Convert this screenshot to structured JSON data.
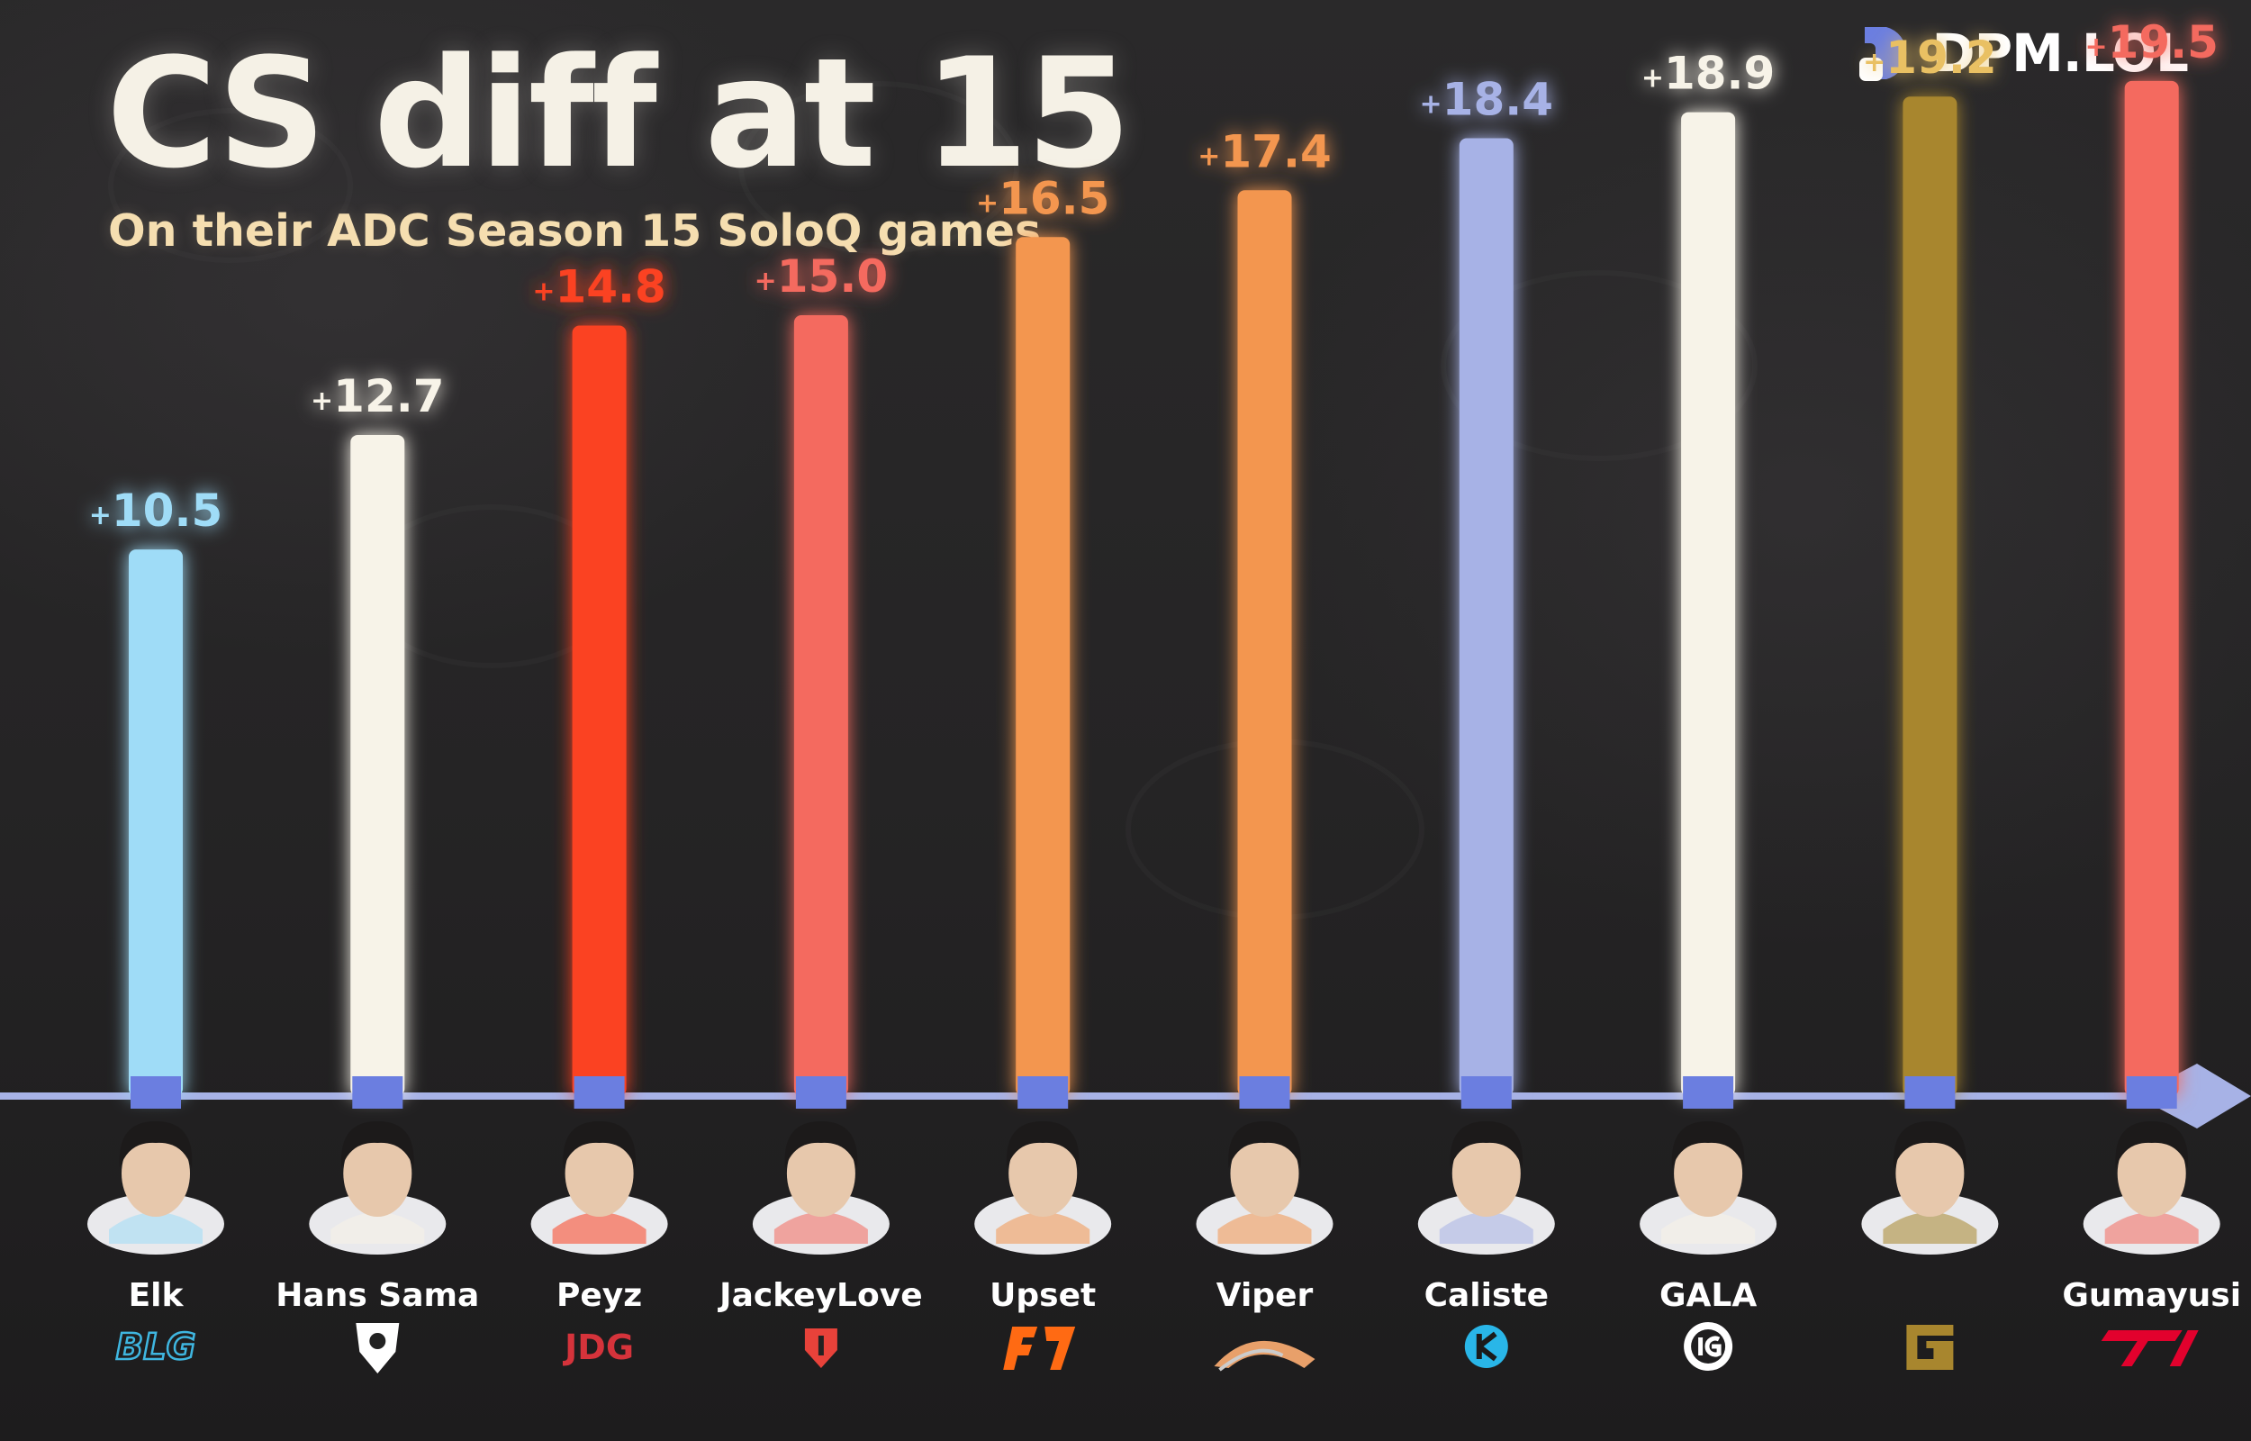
{
  "brand": {
    "logo_text": "DPM.LOL"
  },
  "colors": {
    "baseline": "#a7b2e6",
    "connector": "#6b7ee0",
    "background": "#252425"
  },
  "chart_data": {
    "type": "bar",
    "title": "CS diff at 15",
    "subtitle": "On their ADC Season 15 SoloQ games",
    "xlabel": "",
    "ylabel": "",
    "ylim": [
      0,
      20.5
    ],
    "grid": false,
    "categories": [
      "Elk",
      "Hans Sama",
      "Peyz",
      "JackeyLove",
      "Upset",
      "Viper",
      "Caliste",
      "GALA",
      "",
      "Gumayusi"
    ],
    "values": [
      10.5,
      12.7,
      14.8,
      15.0,
      16.5,
      17.4,
      18.4,
      18.9,
      19.2,
      19.5
    ],
    "value_labels": [
      "10.5",
      "12.7",
      "14.8",
      "15.0",
      "16.5",
      "17.4",
      "18.4",
      "18.9",
      "19.2",
      "19.5"
    ],
    "value_prefix": "+",
    "bar_colors": [
      "#9fdcf7",
      "#f7f3e8",
      "#fb4324",
      "#f46a5e",
      "#f39650",
      "#f39650",
      "#a7b2e6",
      "#f7f3e8",
      "#a8862e",
      "#f46a5e"
    ],
    "label_colors": [
      "#9fdcf7",
      "#f7f3e8",
      "#fb4324",
      "#f46a5e",
      "#f39650",
      "#f39650",
      "#a7b2e6",
      "#f7f3e8",
      "#e9c063",
      "#f46a5e"
    ],
    "team_icons": [
      "blg-logo-icon",
      "g2-logo-icon",
      "jdg-logo-icon",
      "tes-logo-icon",
      "fnatic-logo-icon",
      "hle-logo-icon",
      "karmine-logo-icon",
      "ig-logo-icon",
      "geng-logo-icon",
      "t1-logo-icon"
    ],
    "team_icon_colors": [
      "#3fb6e0",
      "#ffffff",
      "#d5333b",
      "#e8423a",
      "#ff6a13",
      "#e8a06a",
      "#29b6e8",
      "#ffffff",
      "#a8862e",
      "#e2012d"
    ]
  }
}
